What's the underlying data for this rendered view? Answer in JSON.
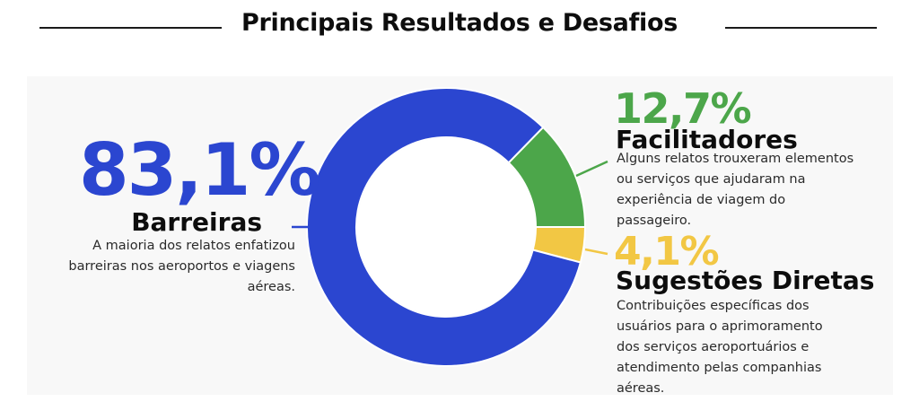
{
  "header": {
    "title": "Principais Resultados e Desafios"
  },
  "colors": {
    "barreiras": "#2B46D0",
    "facilitadores": "#4CA64A",
    "sugestoes": "#F2C744",
    "panel_bg": "#f8f8f8",
    "text_dark": "#0d0d0d",
    "text_body": "#2a2a2a"
  },
  "segments": {
    "barreiras": {
      "percent_label": "83,1%",
      "title": "Barreiras",
      "description_lines": [
        "A maioria dos relatos enfatizou",
        "barreiras nos aeroportos e viagens",
        "aéreas."
      ]
    },
    "facilitadores": {
      "percent_label": "12,7%",
      "title": "Facilitadores",
      "description_lines": [
        "Alguns relatos trouxeram elementos",
        "ou serviços que ajudaram na",
        "experiência de viagem do",
        "passageiro."
      ]
    },
    "sugestoes": {
      "percent_label": "4,1%",
      "title": "Sugestões Diretas",
      "description_lines": [
        "Contribuições específicas dos",
        "usuários para o aprimoramento",
        "dos serviços aeroportuários e",
        "atendimento pelas companhias",
        "aéreas."
      ]
    }
  },
  "chart_data": {
    "type": "pie",
    "subtype": "donut",
    "title": "Principais Resultados e Desafios",
    "categories": [
      "Barreiras",
      "Facilitadores",
      "Sugestões Diretas"
    ],
    "values": [
      83.1,
      12.7,
      4.1
    ],
    "unit": "%",
    "colors": [
      "#2B46D0",
      "#4CA64A",
      "#F2C744"
    ],
    "labels": [
      "83,1%",
      "12,7%",
      "4,1%"
    ],
    "descriptions": [
      "A maioria dos relatos enfatizou barreiras nos aeroportos e viagens aéreas.",
      "Alguns relatos trouxeram elementos ou serviços que ajudaram na experiência de viagem do passageiro.",
      "Contribuições específicas dos usuários para o aprimoramento dos serviços aeroportuários e atendimento pelas companhias aéreas."
    ],
    "legend_position": "callouts"
  }
}
